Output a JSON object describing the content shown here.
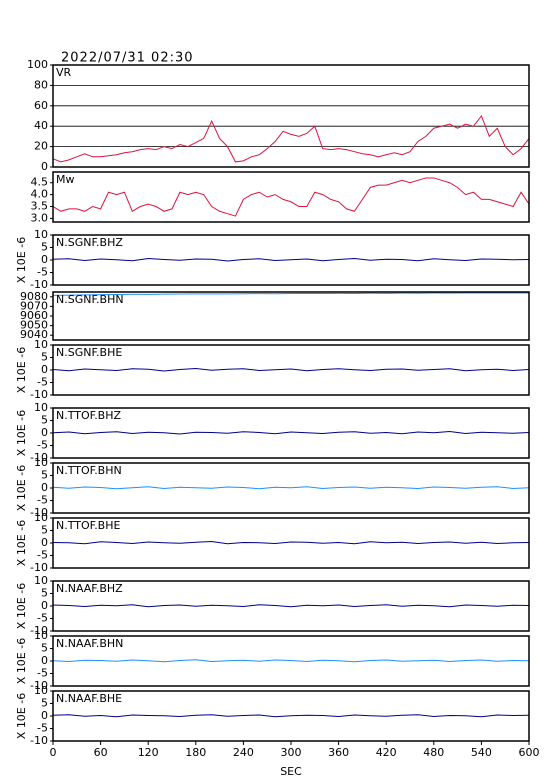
{
  "header": {
    "title": "2022/07/31 02:30"
  },
  "chart_data": [
    {
      "type": "line",
      "label": "VR",
      "color": "#dc143c",
      "grid": true,
      "x": [
        0,
        10,
        20,
        30,
        40,
        50,
        60,
        70,
        80,
        90,
        100,
        110,
        120,
        130,
        140,
        150,
        160,
        170,
        180,
        190,
        200,
        210,
        220,
        230,
        240,
        250,
        260,
        270,
        280,
        290,
        300,
        310,
        320,
        330,
        340,
        350,
        360,
        370,
        380,
        390,
        400,
        410,
        420,
        430,
        440,
        450,
        460,
        470,
        480,
        490,
        500,
        510,
        520,
        530,
        540,
        550,
        560,
        570,
        580,
        590,
        600
      ],
      "values": [
        8,
        5,
        7,
        10,
        13,
        10,
        10,
        11,
        12,
        14,
        15,
        17,
        18,
        17,
        20,
        18,
        22,
        20,
        24,
        28,
        45,
        28,
        20,
        5,
        6,
        10,
        12,
        18,
        25,
        35,
        32,
        30,
        33,
        40,
        18,
        17,
        18,
        17,
        15,
        13,
        12,
        10,
        12,
        14,
        12,
        15,
        25,
        30,
        38,
        40,
        42,
        38,
        42,
        40,
        50,
        30,
        38,
        20,
        12,
        18,
        28
      ],
      "ylim": [
        0,
        100
      ],
      "yticks": [
        0,
        20,
        40,
        60,
        80,
        100
      ]
    },
    {
      "type": "line",
      "label": "Mw",
      "color": "#dc143c",
      "x": [
        0,
        10,
        20,
        30,
        40,
        50,
        60,
        70,
        80,
        90,
        100,
        110,
        120,
        130,
        140,
        150,
        160,
        170,
        180,
        190,
        200,
        210,
        220,
        230,
        240,
        250,
        260,
        270,
        280,
        290,
        300,
        310,
        320,
        330,
        340,
        350,
        360,
        370,
        380,
        390,
        400,
        410,
        420,
        430,
        440,
        450,
        460,
        470,
        480,
        490,
        500,
        510,
        520,
        530,
        540,
        550,
        560,
        570,
        580,
        590,
        600
      ],
      "values": [
        3.5,
        3.3,
        3.4,
        3.4,
        3.3,
        3.5,
        3.4,
        4.1,
        4.0,
        4.1,
        3.3,
        3.5,
        3.6,
        3.5,
        3.3,
        3.4,
        4.1,
        4.0,
        4.1,
        4.0,
        3.5,
        3.3,
        3.2,
        3.1,
        3.8,
        4.0,
        4.1,
        3.9,
        4.0,
        3.8,
        3.7,
        3.5,
        3.5,
        4.1,
        4.0,
        3.8,
        3.7,
        3.4,
        3.3,
        3.8,
        4.3,
        4.4,
        4.4,
        4.5,
        4.6,
        4.5,
        4.6,
        4.7,
        4.7,
        4.6,
        4.5,
        4.3,
        4.0,
        4.1,
        3.8,
        3.8,
        3.7,
        3.6,
        3.5,
        4.1,
        3.6
      ],
      "ylim": [
        2.85,
        4.95
      ],
      "yticks": [
        {
          "value": 3,
          "label": "3.0"
        },
        3.5,
        {
          "value": 4,
          "label": "4.0"
        },
        4.5
      ]
    },
    {
      "type": "line",
      "label": "N.SGNF.BHZ",
      "ylabel": "X 10E -6",
      "color": "#00008b",
      "x": [
        0,
        20,
        40,
        60,
        80,
        100,
        120,
        140,
        160,
        180,
        200,
        220,
        240,
        260,
        280,
        300,
        320,
        340,
        360,
        380,
        400,
        420,
        440,
        460,
        480,
        500,
        520,
        540,
        560,
        580,
        600
      ],
      "values": [
        0.3,
        0.5,
        -0.2,
        0.4,
        0.1,
        -0.3,
        0.6,
        0.2,
        -0.1,
        0.4,
        0.3,
        -0.4,
        0.2,
        0.5,
        -0.2,
        0.1,
        0.4,
        -0.3,
        0.2,
        0.6,
        -0.1,
        0.3,
        0.2,
        -0.3,
        0.5,
        0.1,
        -0.2,
        0.4,
        0.3,
        0.1,
        0.2
      ],
      "ylim": [
        -10,
        10
      ],
      "yticks": [
        -10,
        -5,
        0,
        5,
        10
      ]
    },
    {
      "type": "line",
      "label": "N.SGNF.BHN",
      "color": "#1e90ff",
      "x": [
        0,
        20,
        40,
        60,
        80,
        100,
        120,
        140,
        160,
        180,
        200,
        220,
        240,
        260,
        280,
        300,
        320,
        340,
        360,
        380,
        400,
        420,
        440,
        460,
        480,
        500,
        520,
        540,
        560,
        580,
        600
      ],
      "values": [
        9081.5,
        9081.8,
        9082,
        9082.3,
        9082.4,
        9082.6,
        9082.5,
        9082.8,
        9082.9,
        9083,
        9083.1,
        9083,
        9083.2,
        9083.3,
        9083.2,
        9083.4,
        9083.5,
        9083.4,
        9083.6,
        9083.5,
        9083.7,
        9083.6,
        9083.8,
        9083.7,
        9083.9,
        9083.8,
        9084,
        9083.9,
        9084,
        9083.9,
        9084
      ],
      "ylim": [
        9035,
        9085
      ],
      "yticks": [
        9040,
        9050,
        9060,
        9070,
        9080
      ]
    },
    {
      "type": "line",
      "label": "N.SGNF.BHE",
      "ylabel": "X 10E -6",
      "color": "#00008b",
      "x": [
        0,
        20,
        40,
        60,
        80,
        100,
        120,
        140,
        160,
        180,
        200,
        220,
        240,
        260,
        280,
        300,
        320,
        340,
        360,
        380,
        400,
        420,
        440,
        460,
        480,
        500,
        520,
        540,
        560,
        580,
        600
      ],
      "values": [
        0.2,
        -0.3,
        0.4,
        0.1,
        -0.2,
        0.5,
        0.3,
        -0.4,
        0.2,
        0.6,
        -0.1,
        0.3,
        0.5,
        -0.2,
        0.1,
        0.4,
        -0.3,
        0.2,
        0.5,
        0.1,
        -0.2,
        0.3,
        0.4,
        -0.1,
        0.2,
        0.5,
        -0.3,
        0.1,
        0.3,
        -0.2,
        0.2
      ],
      "ylim": [
        -10,
        10
      ],
      "yticks": [
        -10,
        -5,
        0,
        5,
        10
      ]
    },
    {
      "type": "line",
      "label": "N.TTOF.BHZ",
      "ylabel": "X 10E -6",
      "color": "#00008b",
      "x": [
        0,
        20,
        40,
        60,
        80,
        100,
        120,
        140,
        160,
        180,
        200,
        220,
        240,
        260,
        280,
        300,
        320,
        340,
        360,
        380,
        400,
        420,
        440,
        460,
        480,
        500,
        520,
        540,
        560,
        580,
        600
      ],
      "values": [
        0.1,
        0.4,
        -0.3,
        0.2,
        0.5,
        -0.2,
        0.3,
        0.1,
        -0.4,
        0.3,
        0.2,
        -0.1,
        0.5,
        0.2,
        -0.3,
        0.4,
        0.1,
        -0.2,
        0.3,
        0.5,
        -0.1,
        0.2,
        -0.3,
        0.4,
        0.1,
        0.6,
        -0.2,
        0.3,
        0.1,
        -0.1,
        0.2
      ],
      "ylim": [
        -10,
        10
      ],
      "yticks": [
        -10,
        -5,
        0,
        5,
        10
      ]
    },
    {
      "type": "line",
      "label": "N.TTOF.BHN",
      "ylabel": "X 10E -6",
      "color": "#1e90ff",
      "x": [
        0,
        20,
        40,
        60,
        80,
        100,
        120,
        140,
        160,
        180,
        200,
        220,
        240,
        260,
        280,
        300,
        320,
        340,
        360,
        380,
        400,
        420,
        440,
        460,
        480,
        500,
        520,
        540,
        560,
        580,
        600
      ],
      "values": [
        0.3,
        -0.1,
        0.4,
        0.2,
        -0.3,
        0.1,
        0.5,
        -0.2,
        0.3,
        0.1,
        -0.1,
        0.4,
        0.2,
        -0.3,
        0.3,
        0.1,
        0.5,
        -0.2,
        0.2,
        0.4,
        -0.1,
        0.3,
        0.1,
        -0.2,
        0.4,
        0.2,
        -0.1,
        0.3,
        0.5,
        -0.2,
        0.1
      ],
      "ylim": [
        -10,
        10
      ],
      "yticks": [
        -10,
        -5,
        0,
        5,
        10
      ]
    },
    {
      "type": "line",
      "label": "N.TTOF.BHE",
      "ylabel": "X 10E -6",
      "color": "#00008b",
      "x": [
        0,
        20,
        40,
        60,
        80,
        100,
        120,
        140,
        160,
        180,
        200,
        220,
        240,
        260,
        280,
        300,
        320,
        340,
        360,
        380,
        400,
        420,
        440,
        460,
        480,
        500,
        520,
        540,
        560,
        580,
        600
      ],
      "values": [
        0.2,
        0.1,
        -0.3,
        0.5,
        0.2,
        -0.2,
        0.4,
        0.1,
        -0.1,
        0.3,
        0.6,
        -0.3,
        0.2,
        0.1,
        -0.2,
        0.4,
        0.3,
        -0.1,
        0.2,
        -0.3,
        0.5,
        0.1,
        0.3,
        -0.2,
        0.2,
        0.4,
        -0.1,
        0.3,
        -0.2,
        0.1,
        0.2
      ],
      "ylim": [
        -10,
        10
      ],
      "yticks": [
        -10,
        -5,
        0,
        5,
        10
      ]
    },
    {
      "type": "line",
      "label": "N.NAAF.BHZ",
      "ylabel": "X 10E -6",
      "color": "#00008b",
      "x": [
        0,
        20,
        40,
        60,
        80,
        100,
        120,
        140,
        160,
        180,
        200,
        220,
        240,
        260,
        280,
        300,
        320,
        340,
        360,
        380,
        400,
        420,
        440,
        460,
        480,
        500,
        520,
        540,
        560,
        580,
        600
      ],
      "values": [
        0.4,
        0.2,
        -0.2,
        0.3,
        0.1,
        0.5,
        -0.3,
        0.2,
        0.4,
        -0.1,
        0.3,
        0.1,
        -0.2,
        0.5,
        0.2,
        -0.3,
        0.3,
        0.1,
        0.4,
        -0.2,
        0.2,
        0.5,
        -0.1,
        0.3,
        0.1,
        -0.3,
        0.4,
        0.2,
        -0.1,
        0.3,
        0.2
      ],
      "ylim": [
        -10,
        10
      ],
      "yticks": [
        -10,
        -5,
        0,
        5,
        10
      ]
    },
    {
      "type": "line",
      "label": "N.NAAF.BHN",
      "ylabel": "X 10E -6",
      "color": "#1e90ff",
      "x": [
        0,
        20,
        40,
        60,
        80,
        100,
        120,
        140,
        160,
        180,
        200,
        220,
        240,
        260,
        280,
        300,
        320,
        340,
        360,
        380,
        400,
        420,
        440,
        460,
        480,
        500,
        520,
        540,
        560,
        580,
        600
      ],
      "values": [
        0.1,
        -0.2,
        0.3,
        0.2,
        -0.1,
        0.4,
        0.1,
        -0.3,
        0.2,
        0.5,
        -0.2,
        0.1,
        0.3,
        -0.1,
        0.4,
        0.2,
        -0.2,
        0.3,
        0.1,
        -0.3,
        0.2,
        0.4,
        -0.1,
        0.1,
        0.3,
        -0.2,
        0.2,
        0.4,
        -0.1,
        0.2,
        0.1
      ],
      "ylim": [
        -10,
        10
      ],
      "yticks": [
        -10,
        -5,
        0,
        5,
        10
      ]
    },
    {
      "type": "line",
      "label": "N.NAAF.BHE",
      "ylabel": "X 10E -6",
      "color": "#00008b",
      "x": [
        0,
        20,
        40,
        60,
        80,
        100,
        120,
        140,
        160,
        180,
        200,
        220,
        240,
        260,
        280,
        300,
        320,
        340,
        360,
        380,
        400,
        420,
        440,
        460,
        480,
        500,
        520,
        540,
        560,
        580,
        600
      ],
      "values": [
        0.3,
        0.5,
        -0.1,
        0.2,
        -0.3,
        0.4,
        0.2,
        0.1,
        -0.2,
        0.3,
        0.5,
        -0.1,
        0.2,
        0.4,
        -0.3,
        0.1,
        0.3,
        0.2,
        -0.2,
        0.4,
        0.1,
        -0.1,
        0.3,
        0.5,
        -0.2,
        0.2,
        0.1,
        -0.3,
        0.4,
        0.2,
        0.3
      ],
      "ylim": [
        -10,
        10
      ],
      "yticks": [
        -10,
        -5,
        0,
        5,
        10
      ],
      "xlim": [
        0,
        600
      ],
      "xticks": [
        0,
        60,
        120,
        180,
        240,
        300,
        360,
        420,
        480,
        540,
        600
      ],
      "xlabel": "SEC"
    }
  ]
}
